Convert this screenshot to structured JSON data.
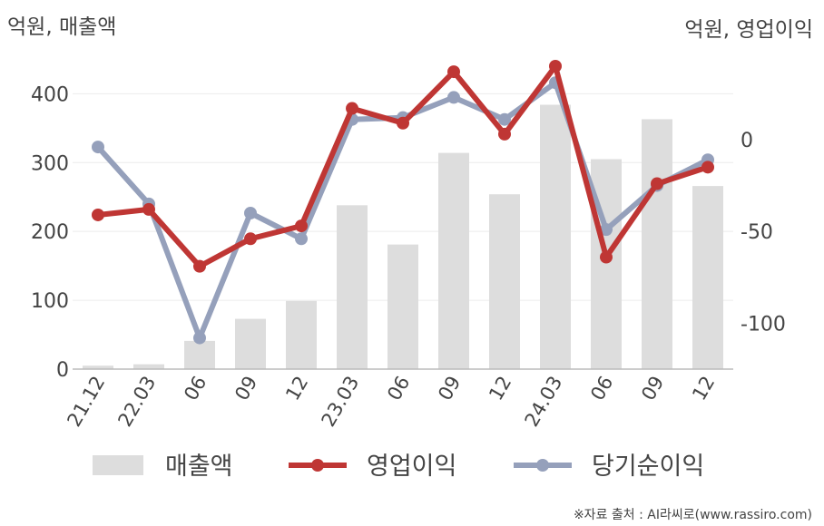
{
  "chart_data": {
    "type": "bar",
    "left_unit": "억원, 매출액",
    "right_unit": "억원, 영업이익",
    "categories": [
      "21.12",
      "22.03",
      "06",
      "09",
      "12",
      "23.03",
      "06",
      "09",
      "12",
      "24.03",
      "06",
      "09",
      "12"
    ],
    "left_axis": {
      "ylim": [
        0,
        440
      ],
      "ticks": [
        0,
        100,
        200,
        300,
        400
      ]
    },
    "right_axis": {
      "ylim": [
        -125,
        40
      ],
      "ticks": [
        -100,
        -50,
        0
      ]
    },
    "series": [
      {
        "name": "매출액",
        "type": "bar",
        "axis": "left",
        "color": "#dddddd",
        "values": [
          5,
          7,
          41,
          73,
          99,
          238,
          181,
          314,
          254,
          384,
          305,
          363,
          266
        ]
      },
      {
        "name": "영업이익",
        "type": "line",
        "axis": "right",
        "color": "#bf3634",
        "values": [
          -41,
          -38,
          -69,
          -54,
          -47,
          17,
          9,
          37,
          3,
          40,
          -64,
          -24,
          -15
        ]
      },
      {
        "name": "당기순이익",
        "type": "line",
        "axis": "right",
        "color": "#95a0bb",
        "values": [
          -4,
          -35,
          -108,
          -40,
          -54,
          11,
          12,
          23,
          11,
          31,
          -49,
          -25,
          -11
        ]
      }
    ],
    "grid": true,
    "legend": "bottom"
  },
  "source": "※자료 출처 : AI라씨로(www.rassiro.com)"
}
